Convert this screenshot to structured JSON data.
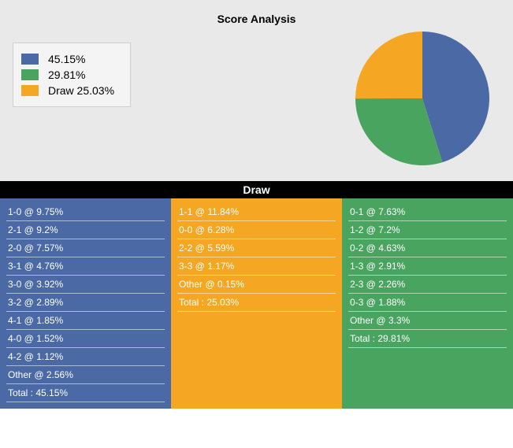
{
  "title": "Score Analysis",
  "colors": {
    "home": "#4a69a5",
    "away": "#49a460",
    "draw": "#f5a623",
    "header_bg": "#000000",
    "header_fg": "#ffffff",
    "top_bg": "#e9e9e9",
    "legend_bg": "#f4f4f4"
  },
  "pie": {
    "radius": 85,
    "slices": [
      {
        "label": "45.15%",
        "value": 45.15,
        "color": "#4a69a5"
      },
      {
        "label": "29.81%",
        "value": 29.81,
        "color": "#49a460"
      },
      {
        "label": "Draw 25.03%",
        "value": 25.03,
        "color": "#f5a623"
      }
    ],
    "start_angle_deg": 0
  },
  "legend": [
    {
      "color": "#4a69a5",
      "label": "45.15%"
    },
    {
      "color": "#49a460",
      "label": "29.81%"
    },
    {
      "color": "#f5a623",
      "label": "Draw 25.03%"
    }
  ],
  "columns": [
    {
      "header": "",
      "bg": "#4a69a5",
      "rows": [
        "1-0 @ 9.75%",
        "2-1 @ 9.2%",
        "2-0 @ 7.57%",
        "3-1 @ 4.76%",
        "3-0 @ 3.92%",
        "3-2 @ 2.89%",
        "4-1 @ 1.85%",
        "4-0 @ 1.52%",
        "4-2 @ 1.12%",
        "Other @ 2.56%",
        "Total : 45.15%"
      ]
    },
    {
      "header": "Draw",
      "bg": "#f5a623",
      "rows": [
        "1-1 @ 11.84%",
        "0-0 @ 6.28%",
        "2-2 @ 5.59%",
        "3-3 @ 1.17%",
        "Other @ 0.15%",
        "Total : 25.03%"
      ]
    },
    {
      "header": "",
      "bg": "#49a460",
      "rows": [
        "0-1 @ 7.63%",
        "1-2 @ 7.2%",
        "0-2 @ 4.63%",
        "1-3 @ 2.91%",
        "2-3 @ 2.26%",
        "0-3 @ 1.88%",
        "Other @ 3.3%",
        "Total : 29.81%"
      ]
    }
  ]
}
